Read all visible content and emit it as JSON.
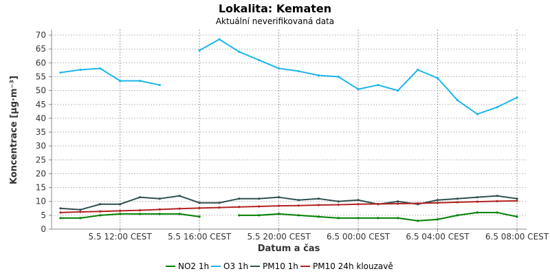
{
  "chart_data": {
    "type": "line",
    "title": "Lokalita: Kematen",
    "subtitle": "Aktuální neverifikovaná data",
    "xlabel": "Datum a čas",
    "ylabel": "Koncentrace [µg·m⁻³]",
    "ylim": [
      0,
      72
    ],
    "y_ticks": [
      0,
      5,
      10,
      15,
      20,
      25,
      30,
      35,
      40,
      45,
      50,
      55,
      60,
      65,
      70
    ],
    "y_tick_labels": [
      "0",
      "5",
      "10",
      "15",
      "20",
      "25",
      "30",
      "35",
      "40",
      "45",
      "50",
      "55",
      "60",
      "65",
      "70"
    ],
    "x": [
      "5.5 09:00",
      "5.5 10:00",
      "5.5 11:00",
      "5.5 12:00",
      "5.5 13:00",
      "5.5 14:00",
      "5.5 15:00",
      "5.5 16:00",
      "5.5 17:00",
      "5.5 18:00",
      "5.5 19:00",
      "5.5 20:00",
      "5.5 21:00",
      "5.5 22:00",
      "5.5 23:00",
      "6.5 00:00",
      "6.5 01:00",
      "6.5 02:00",
      "6.5 03:00",
      "6.5 04:00",
      "6.5 05:00",
      "6.5 06:00",
      "6.5 07:00",
      "6.5 08:00"
    ],
    "x_ticks": [
      {
        "at": "5.5 12:00",
        "label": "5.5 12:00 CEST"
      },
      {
        "at": "5.5 16:00",
        "label": "5.5 16:00 CEST"
      },
      {
        "at": "5.5 20:00",
        "label": "5.5 20:00 CEST"
      },
      {
        "at": "6.5 00:00",
        "label": "6.5 00:00 CEST"
      },
      {
        "at": "6.5 04:00",
        "label": "6.5 04:00 CEST"
      },
      {
        "at": "6.5 08:00",
        "label": "6.5 08:00 CEST"
      }
    ],
    "grid": true,
    "legend_position": "bottom",
    "series": [
      {
        "name": "NO2 1h",
        "color": "#008000",
        "values": [
          4,
          4,
          5,
          5.5,
          5.5,
          5.5,
          5.5,
          4.5,
          null,
          5,
          5,
          5.5,
          5,
          4.5,
          4,
          4,
          4,
          4,
          3,
          3.5,
          5,
          6,
          6,
          4.5
        ]
      },
      {
        "name": "O3 1h",
        "color": "#1ab6ec",
        "values": [
          56.5,
          57.5,
          58,
          53.5,
          53.5,
          52,
          null,
          64.5,
          68.5,
          64,
          61,
          58,
          57,
          55.5,
          55,
          50.5,
          52,
          50,
          57.5,
          54.5,
          46.5,
          41.5,
          44,
          47.5
        ]
      },
      {
        "name": "PM10 1h",
        "color": "#2f4f4f",
        "values": [
          7.5,
          7,
          9,
          9,
          11.5,
          11,
          12,
          9.5,
          9.5,
          11,
          11,
          11.5,
          10.5,
          11,
          10,
          10.5,
          9,
          10,
          9,
          10.5,
          11,
          11.5,
          12,
          11
        ]
      },
      {
        "name": "PM10 24h klouzavě",
        "color": "#b22222",
        "values": [
          6,
          6.2,
          6.4,
          6.6,
          6.8,
          7.1,
          7.4,
          7.6,
          7.8,
          8,
          8.2,
          8.4,
          8.5,
          8.7,
          8.8,
          9,
          9.1,
          9.2,
          9.3,
          9.5,
          9.7,
          9.9,
          10.1,
          10.2
        ]
      }
    ]
  }
}
